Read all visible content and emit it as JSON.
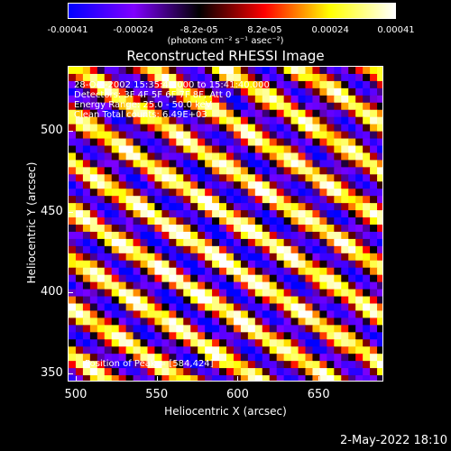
{
  "colorbar": {
    "ticks": [
      "-0.00041",
      "-0.00024",
      "-8.2e-05",
      "8.2e-05",
      "0.00024",
      "0.00041"
    ],
    "units": "(photons cm⁻² s⁻¹ asec⁻²)",
    "range": [
      -0.00041,
      0.00041
    ]
  },
  "title": "Reconstructed RHESSI Image",
  "annotations": {
    "time": "28-Oct-2002 15:35:40.000 to 15:41:40.000",
    "detectors": "Detectors: 3F 4F 5F 6F 7F 8F, Att 0",
    "energy": "Energy Range: 25.0 - 50.0 keV",
    "clean": "Clean     Total counts: 6.49E+03",
    "peak": "Position of Peak = [584,424]"
  },
  "timestamp": "2-May-2022 18:10",
  "chart_data": {
    "type": "heatmap",
    "title": "Reconstructed RHESSI Image",
    "xlabel": "Heliocentric X (arcsec)",
    "ylabel": "Heliocentric Y (arcsec)",
    "xlim": [
      495,
      690
    ],
    "ylim": [
      345,
      540
    ],
    "xticks": [
      "500",
      "550",
      "600",
      "650"
    ],
    "yticks": [
      "350",
      "400",
      "450",
      "500"
    ],
    "colormap": [
      "#0000ff",
      "#8000ff",
      "#000000",
      "#ff0000",
      "#ffff00",
      "#ffffff"
    ],
    "peak": [
      584,
      424
    ],
    "ridge_angle_deg": -33,
    "ridge_spacing_arcsec": 25
  }
}
